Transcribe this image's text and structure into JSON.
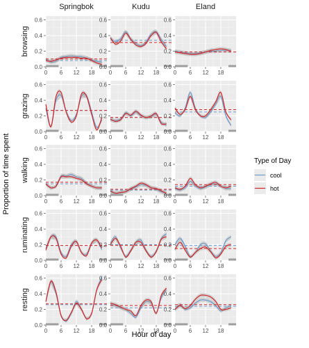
{
  "chart_data": {
    "type": "line",
    "facets": {
      "columns": [
        "Springbok",
        "Kudu",
        "Eland"
      ],
      "rows": [
        "browsing",
        "grazing",
        "walking",
        "ruminating",
        "resting"
      ]
    },
    "xlabel": "Hour of day",
    "ylabel": "Proportion of time spent",
    "xlim": [
      0,
      24
    ],
    "ylim": [
      0,
      0.65
    ],
    "x_ticks": [
      0,
      6,
      12,
      18
    ],
    "x_tick_labels": [
      "0",
      "6",
      "12",
      "18"
    ],
    "y_ticks": [
      0.0,
      0.2,
      0.4,
      0.6
    ],
    "y_tick_labels": [
      "0.0",
      "0.2",
      "0.4",
      "0.6"
    ],
    "grid": true,
    "legend": {
      "title": "Type of Day",
      "position": "right",
      "entries": [
        {
          "name": "cool",
          "color": "#6a9bd1"
        },
        {
          "name": "hot",
          "color": "#d62728"
        }
      ]
    },
    "x": [
      0,
      2,
      4,
      6,
      8,
      10,
      12,
      14,
      16,
      18,
      20,
      22
    ],
    "night_bars": [
      [
        0,
        5
      ],
      [
        21,
        24
      ]
    ],
    "panels": [
      {
        "column": "Springbok",
        "row": "browsing",
        "mean_cool": 0.08,
        "mean_hot": 0.1,
        "cool": [
          0.1,
          0.06,
          0.07,
          0.12,
          0.13,
          0.14,
          0.13,
          0.13,
          0.11,
          0.09,
          0.07,
          0.06
        ],
        "hot": [
          0.08,
          0.07,
          0.09,
          0.11,
          0.12,
          0.12,
          0.12,
          0.11,
          0.11,
          0.08,
          0.05,
          0.03
        ]
      },
      {
        "column": "Kudu",
        "row": "browsing",
        "mean_cool": 0.34,
        "mean_hot": 0.31,
        "cool": [
          0.37,
          0.32,
          0.36,
          0.45,
          0.36,
          0.3,
          0.27,
          0.32,
          0.42,
          0.45,
          0.35,
          0.26
        ],
        "hot": [
          0.37,
          0.29,
          0.33,
          0.43,
          0.35,
          0.28,
          0.26,
          0.3,
          0.4,
          0.44,
          0.32,
          0.23
        ]
      },
      {
        "column": "Eland",
        "row": "browsing",
        "mean_cool": 0.19,
        "mean_hot": 0.19,
        "cool": [
          0.2,
          0.19,
          0.18,
          0.17,
          0.17,
          0.18,
          0.19,
          0.2,
          0.2,
          0.21,
          0.21,
          0.21
        ],
        "hot": [
          0.19,
          0.18,
          0.17,
          0.16,
          0.16,
          0.17,
          0.19,
          0.21,
          0.22,
          0.23,
          0.22,
          0.2
        ]
      },
      {
        "column": "Springbok",
        "row": "grazing",
        "mean_cool": 0.27,
        "mean_hot": 0.27,
        "cool": [
          0.3,
          0.06,
          0.4,
          0.46,
          0.26,
          0.14,
          0.22,
          0.45,
          0.46,
          0.25,
          0.05,
          0.15
        ],
        "hot": [
          0.35,
          0.06,
          0.45,
          0.5,
          0.25,
          0.12,
          0.2,
          0.48,
          0.45,
          0.22,
          0.02,
          0.18
        ]
      },
      {
        "column": "Kudu",
        "row": "grazing",
        "mean_cool": 0.18,
        "mean_hot": 0.18,
        "cool": [
          0.15,
          0.14,
          0.16,
          0.24,
          0.2,
          0.25,
          0.2,
          0.18,
          0.19,
          0.22,
          0.12,
          0.08
        ],
        "hot": [
          0.16,
          0.13,
          0.15,
          0.23,
          0.21,
          0.26,
          0.21,
          0.18,
          0.2,
          0.23,
          0.1,
          0.1
        ]
      },
      {
        "column": "Eland",
        "row": "grazing",
        "mean_cool": 0.25,
        "mean_hot": 0.28,
        "cool": [
          0.24,
          0.2,
          0.3,
          0.5,
          0.3,
          0.2,
          0.18,
          0.25,
          0.35,
          0.45,
          0.2,
          0.08
        ],
        "hot": [
          0.3,
          0.22,
          0.28,
          0.45,
          0.28,
          0.2,
          0.2,
          0.28,
          0.38,
          0.5,
          0.25,
          0.15
        ]
      },
      {
        "column": "Springbok",
        "row": "walking",
        "mean_cool": 0.15,
        "mean_hot": 0.17,
        "cool": [
          0.15,
          0.1,
          0.12,
          0.25,
          0.25,
          0.27,
          0.24,
          0.22,
          0.16,
          0.12,
          0.1,
          0.1
        ],
        "hot": [
          0.15,
          0.1,
          0.12,
          0.24,
          0.24,
          0.24,
          0.22,
          0.2,
          0.15,
          0.12,
          0.1,
          0.1
        ]
      },
      {
        "column": "Kudu",
        "row": "walking",
        "mean_cool": 0.07,
        "mean_hot": 0.08,
        "cool": [
          0.05,
          0.03,
          0.04,
          0.05,
          0.08,
          0.11,
          0.14,
          0.13,
          0.1,
          0.08,
          0.05,
          0.03
        ],
        "hot": [
          0.06,
          0.03,
          0.04,
          0.05,
          0.09,
          0.12,
          0.16,
          0.14,
          0.1,
          0.09,
          0.06,
          0.03
        ]
      },
      {
        "column": "Eland",
        "row": "walking",
        "mean_cool": 0.12,
        "mean_hot": 0.14,
        "cool": [
          0.09,
          0.07,
          0.1,
          0.18,
          0.12,
          0.09,
          0.11,
          0.14,
          0.15,
          0.12,
          0.09,
          0.09
        ],
        "hot": [
          0.1,
          0.08,
          0.12,
          0.22,
          0.14,
          0.1,
          0.12,
          0.15,
          0.17,
          0.12,
          0.1,
          0.12
        ]
      },
      {
        "column": "Springbok",
        "row": "ruminating",
        "mean_cool": 0.19,
        "mean_hot": 0.19,
        "cool": [
          0.15,
          0.3,
          0.3,
          0.1,
          0.05,
          0.2,
          0.24,
          0.1,
          0.08,
          0.22,
          0.26,
          0.14
        ],
        "hot": [
          0.13,
          0.3,
          0.28,
          0.08,
          0.03,
          0.18,
          0.24,
          0.1,
          0.06,
          0.22,
          0.26,
          0.16
        ]
      },
      {
        "column": "Kudu",
        "row": "ruminating",
        "mean_cool": 0.2,
        "mean_hot": 0.19,
        "cool": [
          0.22,
          0.3,
          0.16,
          0.05,
          0.13,
          0.23,
          0.26,
          0.13,
          0.05,
          0.12,
          0.28,
          0.34
        ],
        "hot": [
          0.2,
          0.28,
          0.18,
          0.04,
          0.12,
          0.23,
          0.23,
          0.12,
          0.04,
          0.11,
          0.27,
          0.3
        ]
      },
      {
        "column": "Eland",
        "row": "ruminating",
        "mean_cool": 0.19,
        "mean_hot": 0.15,
        "cool": [
          0.2,
          0.28,
          0.18,
          0.05,
          0.1,
          0.2,
          0.21,
          0.12,
          0.05,
          0.1,
          0.25,
          0.3
        ],
        "hot": [
          0.14,
          0.23,
          0.13,
          0.04,
          0.1,
          0.15,
          0.17,
          0.11,
          0.03,
          0.08,
          0.18,
          0.2
        ]
      },
      {
        "column": "Springbok",
        "row": "resting",
        "mean_cool": 0.26,
        "mean_hot": 0.27,
        "cool": [
          0.3,
          0.55,
          0.4,
          0.12,
          0.05,
          0.15,
          0.3,
          0.2,
          0.08,
          0.15,
          0.45,
          0.62
        ],
        "hot": [
          0.3,
          0.56,
          0.42,
          0.12,
          0.06,
          0.16,
          0.28,
          0.2,
          0.08,
          0.15,
          0.45,
          0.58
        ]
      },
      {
        "column": "Kudu",
        "row": "resting",
        "mean_cool": 0.22,
        "mean_hot": 0.25,
        "cool": [
          0.26,
          0.25,
          0.22,
          0.2,
          0.15,
          0.1,
          0.22,
          0.3,
          0.28,
          0.15,
          0.35,
          0.45
        ],
        "hot": [
          0.28,
          0.26,
          0.23,
          0.2,
          0.18,
          0.12,
          0.25,
          0.32,
          0.3,
          0.15,
          0.38,
          0.47
        ]
      },
      {
        "column": "Eland",
        "row": "resting",
        "mean_cool": 0.24,
        "mean_hot": 0.26,
        "cool": [
          0.2,
          0.26,
          0.2,
          0.22,
          0.28,
          0.32,
          0.32,
          0.3,
          0.25,
          0.18,
          0.22,
          0.25
        ],
        "hot": [
          0.2,
          0.25,
          0.21,
          0.25,
          0.33,
          0.38,
          0.38,
          0.36,
          0.3,
          0.2,
          0.2,
          0.22
        ]
      }
    ]
  }
}
